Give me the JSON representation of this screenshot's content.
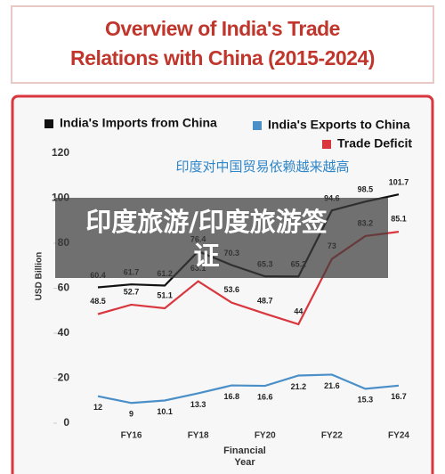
{
  "header": {
    "title": "Overview of India's Trade Relations with China (2015-2024)"
  },
  "chart_data": {
    "type": "line",
    "subtitle": "印度对中国贸易依赖越来越高",
    "y_label": "USD Billion",
    "x_label": "Financial Year",
    "categories": [
      null,
      "FY16",
      null,
      "FY18",
      null,
      "FY20",
      null,
      "FY22",
      null,
      "FY24"
    ],
    "series": [
      {
        "name": "India's Imports from China",
        "color": "#111111",
        "values": [
          60.4,
          61.7,
          61.2,
          76.4,
          70.3,
          65.3,
          65.2,
          94.6,
          98.5,
          101.7
        ]
      },
      {
        "name": "India's Exports to China",
        "color": "#4a8fc8",
        "values": [
          12,
          9,
          10.1,
          13.3,
          16.8,
          16.6,
          21.2,
          21.6,
          15.3,
          16.7
        ]
      },
      {
        "name": "Trade Deficit",
        "color": "#d9363e",
        "values": [
          48.5,
          52.7,
          51.1,
          63.1,
          53.6,
          48.7,
          44,
          73,
          83.2,
          85.1
        ]
      }
    ],
    "ylim": [
      0,
      120
    ],
    "yticks": [
      0,
      20,
      40,
      60,
      80,
      100,
      120
    ]
  },
  "overlay": {
    "text": "印度旅游/印度旅游签证"
  }
}
